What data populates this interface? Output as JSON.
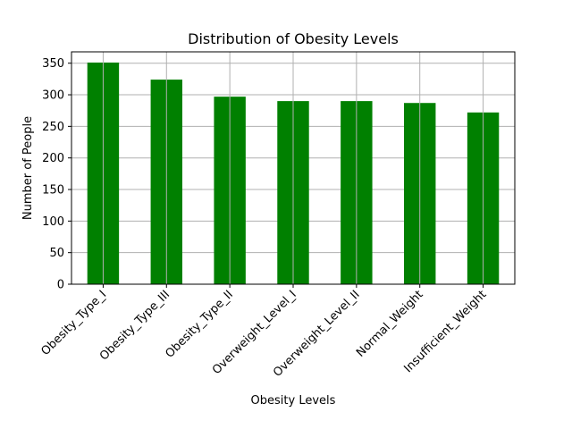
{
  "chart_data": {
    "type": "bar",
    "title": "Distribution of Obesity Levels",
    "xlabel": "Obesity Levels",
    "ylabel": "Number of People",
    "categories": [
      "Obesity_Type_I",
      "Obesity_Type_III",
      "Obesity_Type_II",
      "Overweight_Level_I",
      "Overweight_Level_II",
      "Normal_Weight",
      "Insufficient_Weight"
    ],
    "values": [
      351,
      324,
      297,
      290,
      290,
      287,
      272
    ],
    "ylim": [
      0,
      368
    ],
    "yticks": [
      0,
      50,
      100,
      150,
      200,
      250,
      300,
      350
    ],
    "grid": true,
    "bar_color": "#008000",
    "grid_color": "#b0b0b0"
  }
}
